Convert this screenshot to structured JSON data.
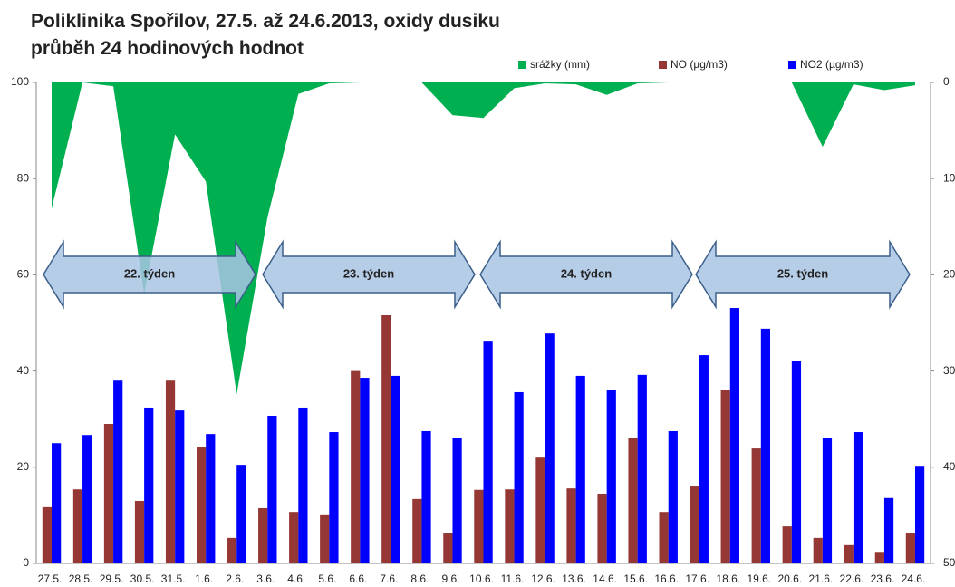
{
  "chart_data": {
    "type": "bar_area",
    "title": "Poliklinika Spořilov, 27.5. až 24.6.2013, oxidy dusiku",
    "subtitle": "průběh 24 hodinových hodnot",
    "categories": [
      "27.5.",
      "28.5.",
      "29.5.",
      "30.5.",
      "31.5.",
      "1.6.",
      "2.6.",
      "3.6.",
      "4.6.",
      "5.6.",
      "6.6.",
      "7.6.",
      "8.6.",
      "9.6.",
      "10.6.",
      "11.6.",
      "12.6.",
      "13.6.",
      "14.6.",
      "15.6.",
      "16.6.",
      "17.6.",
      "18.6.",
      "19.6.",
      "20.6.",
      "21.6.",
      "22.6.",
      "23.6.",
      "24.6."
    ],
    "series": [
      {
        "name": "srážky (mm)",
        "color": "#00b050",
        "axis": "y2",
        "kind": "area",
        "values": [
          13.1,
          0,
          0.4,
          22,
          5.4,
          10.3,
          32.4,
          14,
          1.2,
          0.1,
          0,
          0,
          0,
          3.4,
          3.7,
          0.6,
          0.1,
          0.2,
          1.3,
          0.1,
          0,
          0,
          0,
          0,
          0,
          6.7,
          0.2,
          0.8,
          0.3
        ]
      },
      {
        "name": "NO (µg/m3)",
        "color": "#953735",
        "kind": "bar",
        "values": [
          11.7,
          15.4,
          29,
          13,
          38,
          24.1,
          5.3,
          11.5,
          10.7,
          10.2,
          40,
          51.6,
          13.4,
          6.4,
          15.3,
          15.4,
          22,
          15.6,
          14.5,
          26,
          10.7,
          16,
          36,
          23.9,
          7.7,
          5.3,
          3.8,
          2.4,
          6.4
        ]
      },
      {
        "name": "NO2 (µg/m3)",
        "color": "#0000ff",
        "kind": "bar",
        "values": [
          25,
          26.7,
          38,
          32.4,
          31.8,
          26.9,
          20.5,
          30.7,
          32.4,
          27.3,
          38.6,
          39,
          27.5,
          26,
          46.3,
          35.6,
          47.8,
          39,
          36,
          39.2,
          27.5,
          43.3,
          53.1,
          48.8,
          42,
          26,
          27.3,
          13.6,
          20.3
        ]
      }
    ],
    "ylim": [
      0,
      100
    ],
    "yticks": [
      0,
      20,
      40,
      60,
      80,
      100
    ],
    "y2lim": [
      0,
      50
    ],
    "y2ticks": [
      0,
      10,
      20,
      30,
      40,
      50
    ],
    "y2_inverted": true,
    "grid": false,
    "annotations": [
      "22. týden",
      "23. týden",
      "24. týden",
      "25. týden"
    ]
  }
}
